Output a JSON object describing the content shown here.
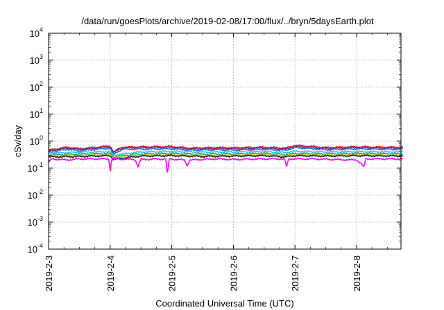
{
  "chart_data": {
    "type": "line",
    "title": "/data/run/goesPlots/archive/2019-02-08/17:00/flux/../bryn/5daysEarth.plot",
    "xlabel": "Coordinated Universal Time (UTC)",
    "ylabel": "cSv/day",
    "yscale": "log",
    "ylim": [
      0.0001,
      10000
    ],
    "xlim": [
      "2019-02-03",
      "2019-02-08 18:00"
    ],
    "grid": true,
    "legend": "none",
    "x_ticks": [
      "2019-2-3",
      "2019-2-4",
      "2019-2-5",
      "2019-2-6",
      "2019-2-7",
      "2019-2-8"
    ],
    "y_ticks": [
      {
        "base": "10",
        "exp": "-4"
      },
      {
        "base": "10",
        "exp": "-3"
      },
      {
        "base": "10",
        "exp": "-2"
      },
      {
        "base": "10",
        "exp": "-1"
      },
      {
        "base": "10",
        "exp": "0"
      },
      {
        "base": "10",
        "exp": "1"
      },
      {
        "base": "10",
        "exp": "2"
      },
      {
        "base": "10",
        "exp": "3"
      },
      {
        "base": "10",
        "exp": "4"
      }
    ],
    "series": [
      {
        "color": "#e8202a",
        "base": 0.6,
        "points": [
          [
            0,
            0.46
          ],
          [
            0.3,
            0.6
          ],
          [
            0.5,
            0.52
          ],
          [
            1.0,
            0.66
          ],
          [
            1.05,
            0.4
          ],
          [
            1.2,
            0.6
          ],
          [
            1.5,
            0.62
          ],
          [
            2.0,
            0.63
          ],
          [
            2.3,
            0.55
          ],
          [
            2.7,
            0.58
          ],
          [
            3.0,
            0.57
          ],
          [
            3.5,
            0.6
          ],
          [
            3.85,
            0.55
          ],
          [
            4.0,
            0.7
          ],
          [
            4.5,
            0.58
          ],
          [
            5.0,
            0.62
          ],
          [
            5.5,
            0.6
          ],
          [
            5.75,
            0.6
          ]
        ]
      },
      {
        "color": "#7a1f6e",
        "base": 0.56,
        "points": [
          [
            0,
            0.43
          ],
          [
            0.3,
            0.56
          ],
          [
            0.5,
            0.49
          ],
          [
            1.0,
            0.62
          ],
          [
            1.05,
            0.38
          ],
          [
            1.2,
            0.56
          ],
          [
            1.5,
            0.58
          ],
          [
            2.0,
            0.59
          ],
          [
            2.3,
            0.52
          ],
          [
            2.7,
            0.54
          ],
          [
            3.0,
            0.53
          ],
          [
            3.5,
            0.56
          ],
          [
            3.85,
            0.51
          ],
          [
            4.0,
            0.64
          ],
          [
            4.5,
            0.54
          ],
          [
            5.0,
            0.58
          ],
          [
            5.5,
            0.56
          ],
          [
            5.75,
            0.56
          ]
        ]
      },
      {
        "color": "#2a5ee8",
        "base": 0.5,
        "points": [
          [
            0,
            0.38
          ],
          [
            0.3,
            0.5
          ],
          [
            0.5,
            0.44
          ],
          [
            1.0,
            0.55
          ],
          [
            1.05,
            0.33
          ],
          [
            1.2,
            0.5
          ],
          [
            1.5,
            0.51
          ],
          [
            2.0,
            0.52
          ],
          [
            2.3,
            0.46
          ],
          [
            2.7,
            0.48
          ],
          [
            3.0,
            0.47
          ],
          [
            3.5,
            0.5
          ],
          [
            3.85,
            0.46
          ],
          [
            4.0,
            0.58
          ],
          [
            4.5,
            0.48
          ],
          [
            5.0,
            0.52
          ],
          [
            5.5,
            0.5
          ],
          [
            5.75,
            0.5
          ]
        ]
      },
      {
        "color": "#22c8e0",
        "base": 0.4,
        "points": [
          [
            0,
            0.36
          ],
          [
            0.5,
            0.39
          ],
          [
            1.0,
            0.41
          ],
          [
            1.05,
            0.3
          ],
          [
            1.5,
            0.4
          ],
          [
            2.0,
            0.42
          ],
          [
            2.5,
            0.39
          ],
          [
            3.0,
            0.4
          ],
          [
            3.5,
            0.41
          ],
          [
            3.85,
            0.38
          ],
          [
            4.0,
            0.42
          ],
          [
            4.5,
            0.4
          ],
          [
            5.0,
            0.41
          ],
          [
            5.75,
            0.4
          ]
        ]
      },
      {
        "color": "#1f9e6e",
        "base": 0.34,
        "points": [
          [
            0,
            0.31
          ],
          [
            0.5,
            0.33
          ],
          [
            1.0,
            0.35
          ],
          [
            1.05,
            0.26
          ],
          [
            1.5,
            0.34
          ],
          [
            2.0,
            0.35
          ],
          [
            2.5,
            0.33
          ],
          [
            3.0,
            0.34
          ],
          [
            3.5,
            0.35
          ],
          [
            3.85,
            0.32
          ],
          [
            4.0,
            0.35
          ],
          [
            4.5,
            0.34
          ],
          [
            5.0,
            0.35
          ],
          [
            5.75,
            0.34
          ]
        ]
      },
      {
        "color": "#d6c21e",
        "base": 0.3,
        "points": [
          [
            0,
            0.28
          ],
          [
            0.5,
            0.29
          ],
          [
            1.0,
            0.31
          ],
          [
            1.05,
            0.23
          ],
          [
            1.5,
            0.3
          ],
          [
            2.0,
            0.31
          ],
          [
            2.5,
            0.29
          ],
          [
            3.0,
            0.3
          ],
          [
            3.5,
            0.31
          ],
          [
            3.85,
            0.28
          ],
          [
            4.0,
            0.31
          ],
          [
            4.5,
            0.3
          ],
          [
            5.0,
            0.31
          ],
          [
            5.75,
            0.3
          ]
        ]
      },
      {
        "color": "#222222",
        "base": 0.28,
        "points": [
          [
            0,
            0.26
          ],
          [
            0.5,
            0.27
          ],
          [
            1.0,
            0.29
          ],
          [
            1.05,
            0.21
          ],
          [
            1.5,
            0.28
          ],
          [
            2.0,
            0.29
          ],
          [
            2.5,
            0.27
          ],
          [
            3.0,
            0.28
          ],
          [
            3.5,
            0.29
          ],
          [
            3.85,
            0.26
          ],
          [
            4.0,
            0.29
          ],
          [
            4.5,
            0.28
          ],
          [
            5.0,
            0.29
          ],
          [
            5.75,
            0.28
          ]
        ]
      },
      {
        "color": "#ff00ff",
        "base": 0.22,
        "points": [
          [
            0,
            0.16
          ],
          [
            0.05,
            0.22
          ],
          [
            0.3,
            0.2
          ],
          [
            0.5,
            0.22
          ],
          [
            0.97,
            0.22
          ],
          [
            1.0,
            0.08
          ],
          [
            1.03,
            0.22
          ],
          [
            1.4,
            0.21
          ],
          [
            1.45,
            0.11
          ],
          [
            1.5,
            0.21
          ],
          [
            1.9,
            0.22
          ],
          [
            1.93,
            0.04
          ],
          [
            1.96,
            0.22
          ],
          [
            2.2,
            0.2
          ],
          [
            2.25,
            0.12
          ],
          [
            2.3,
            0.2
          ],
          [
            2.7,
            0.22
          ],
          [
            3.0,
            0.21
          ],
          [
            3.5,
            0.22
          ],
          [
            3.83,
            0.22
          ],
          [
            3.86,
            0.11
          ],
          [
            3.9,
            0.22
          ],
          [
            4.3,
            0.22
          ],
          [
            4.6,
            0.21
          ],
          [
            5.0,
            0.2
          ],
          [
            5.12,
            0.11
          ],
          [
            5.15,
            0.22
          ],
          [
            5.5,
            0.22
          ],
          [
            5.75,
            0.22
          ]
        ]
      }
    ]
  }
}
